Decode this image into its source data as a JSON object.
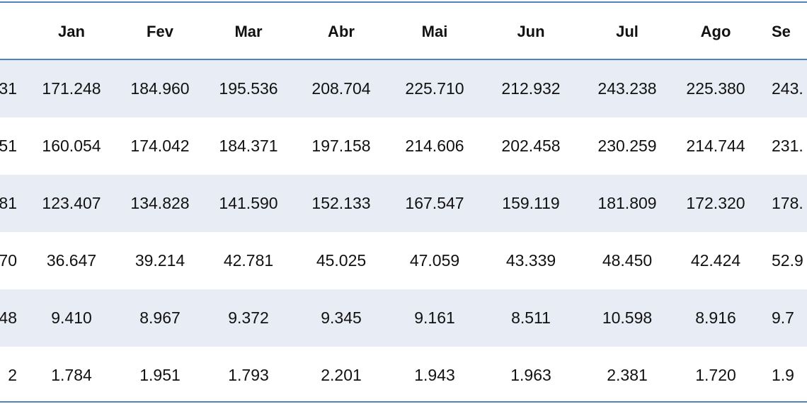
{
  "table": {
    "headers": [
      "",
      "Jan",
      "Fev",
      "Mar",
      "Abr",
      "Mai",
      "Jun",
      "Jul",
      "Ago",
      "Se"
    ],
    "rows": [
      [
        "31",
        "171.248",
        "184.960",
        "195.536",
        "208.704",
        "225.710",
        "212.932",
        "243.238",
        "225.380",
        "243."
      ],
      [
        "51",
        "160.054",
        "174.042",
        "184.371",
        "197.158",
        "214.606",
        "202.458",
        "230.259",
        "214.744",
        "231."
      ],
      [
        "81",
        "123.407",
        "134.828",
        "141.590",
        "152.133",
        "167.547",
        "159.119",
        "181.809",
        "172.320",
        "178."
      ],
      [
        "70",
        "36.647",
        "39.214",
        "42.781",
        "45.025",
        "47.059",
        "43.339",
        "48.450",
        "42.424",
        "52.9"
      ],
      [
        "48",
        "9.410",
        "8.967",
        "9.372",
        "9.345",
        "9.161",
        "8.511",
        "10.598",
        "8.916",
        "9.7"
      ],
      [
        "2",
        "1.784",
        "1.951",
        "1.793",
        "2.201",
        "1.943",
        "1.963",
        "2.381",
        "1.720",
        "1.9"
      ]
    ]
  },
  "colors": {
    "border": "#4f81bd",
    "band": "#e8ecf4"
  }
}
